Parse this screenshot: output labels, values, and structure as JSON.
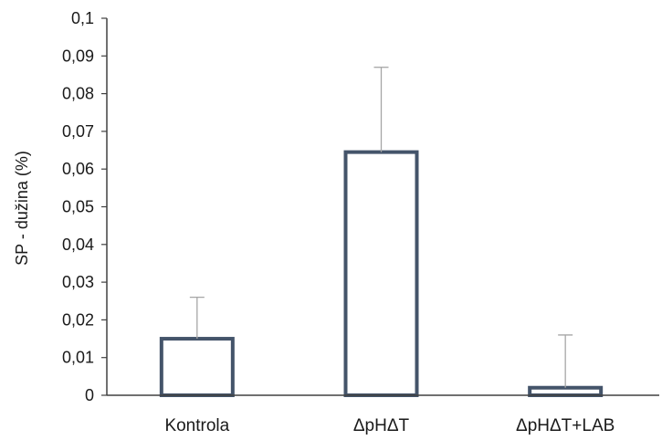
{
  "chart_data": {
    "type": "bar",
    "categories": [
      "Kontrola",
      "ΔpHΔT",
      "ΔpHΔT+LAB"
    ],
    "values": [
      0.015,
      0.0645,
      0.002
    ],
    "error_upper": [
      0.026,
      0.087,
      0.016
    ],
    "ylabel": "SP - dužina (%)",
    "xlabel": "",
    "ylim": [
      0,
      0.1
    ],
    "yticks": [
      "0",
      "0,01",
      "0,02",
      "0,03",
      "0,04",
      "0,05",
      "0,06",
      "0,07",
      "0,08",
      "0,09",
      "0,1"
    ],
    "grid": false,
    "legend": "none",
    "bar_fill": "#ffffff",
    "bar_stroke": "#44546a",
    "error_color": "#a6a6a6",
    "axis_color": "#404040"
  }
}
